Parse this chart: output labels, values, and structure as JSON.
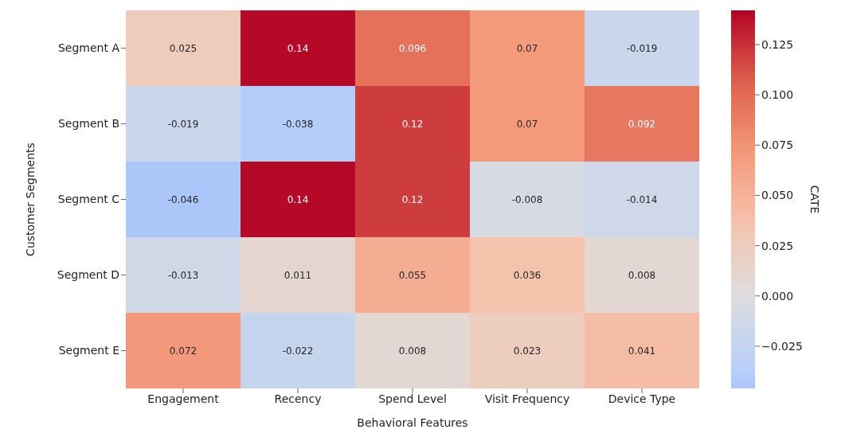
{
  "chart_data": {
    "type": "heatmap",
    "xlabel": "Behavioral Features",
    "ylabel": "Customer Segments",
    "clabel": "CATE",
    "categories": [
      "Engagement",
      "Recency",
      "Spend Level",
      "Visit Frequency",
      "Device Type"
    ],
    "y_categories": [
      "Segment A",
      "Segment B",
      "Segment C",
      "Segment D",
      "Segment E"
    ],
    "cells": [
      [
        0.025,
        0.14,
        0.096,
        0.07,
        -0.019
      ],
      [
        -0.019,
        -0.038,
        0.12,
        0.07,
        0.092
      ],
      [
        -0.046,
        0.14,
        0.12,
        -0.008,
        -0.014
      ],
      [
        -0.013,
        0.011,
        0.055,
        0.036,
        0.008
      ],
      [
        0.072,
        -0.022,
        0.008,
        0.023,
        0.041
      ]
    ],
    "clim": [
      -0.046,
      0.142
    ],
    "cticks": [
      {
        "value": -0.025,
        "label": "−0.025"
      },
      {
        "value": 0,
        "label": "0.000"
      },
      {
        "value": 0.025,
        "label": "0.025"
      },
      {
        "value": 0.05,
        "label": "0.050"
      },
      {
        "value": 0.075,
        "label": "0.075"
      },
      {
        "value": 0.1,
        "label": "0.100"
      },
      {
        "value": 0.125,
        "label": "0.125"
      }
    ],
    "data_labels": true
  }
}
